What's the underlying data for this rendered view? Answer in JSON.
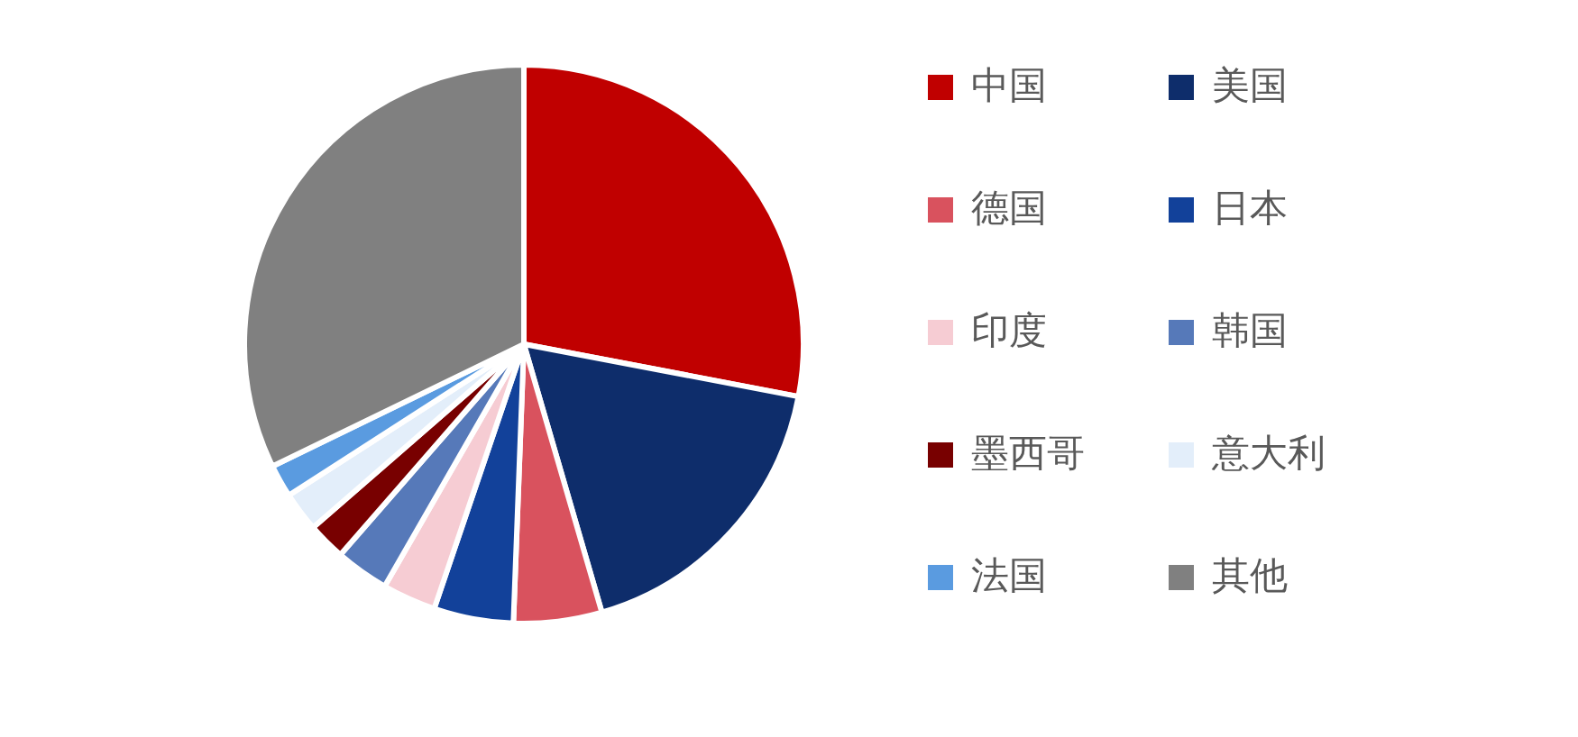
{
  "chart_data": {
    "type": "pie",
    "categories": [
      "中国",
      "美国",
      "德国",
      "日本",
      "印度",
      "韩国",
      "墨西哥",
      "意大利",
      "法国",
      "其他"
    ],
    "values": [
      28.0,
      17.5,
      5.1,
      4.6,
      3.1,
      3.1,
      2.2,
      2.3,
      1.9,
      32.2
    ],
    "colors": [
      "#c00000",
      "#0e2d6b",
      "#d9525e",
      "#12419a",
      "#f6ccd3",
      "#5679b9",
      "#780000",
      "#e3eefa",
      "#5a9be0",
      "#808080"
    ],
    "legend": "right"
  }
}
